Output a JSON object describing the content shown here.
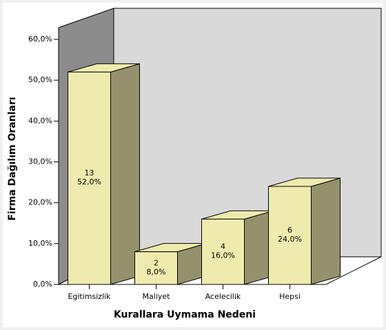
{
  "chart_data": {
    "type": "bar3d",
    "x_label": "Kurallara Uymama Nedeni",
    "y_label": "Firma Dağılım Oranları",
    "categories": [
      "Egitimsizlik",
      "Maliyet",
      "Acelecilik",
      "Hepsi"
    ],
    "values": [
      52,
      8,
      16,
      24
    ],
    "value_labels": [
      "52,0%",
      "8,0%",
      "16,0%",
      "24,0%"
    ],
    "counts": [
      13,
      2,
      4,
      6
    ],
    "color": "#efebae",
    "ylim": [
      0,
      60
    ],
    "yticks": [
      {
        "value": 0,
        "label": "0,0%"
      },
      {
        "value": 10,
        "label": "10,0%"
      },
      {
        "value": 20,
        "label": "20,0%"
      },
      {
        "value": 30,
        "label": "30,0%"
      },
      {
        "value": 40,
        "label": "40,0%"
      },
      {
        "value": 50,
        "label": "50,0%"
      },
      {
        "value": 60,
        "label": "60,0%"
      }
    ]
  }
}
